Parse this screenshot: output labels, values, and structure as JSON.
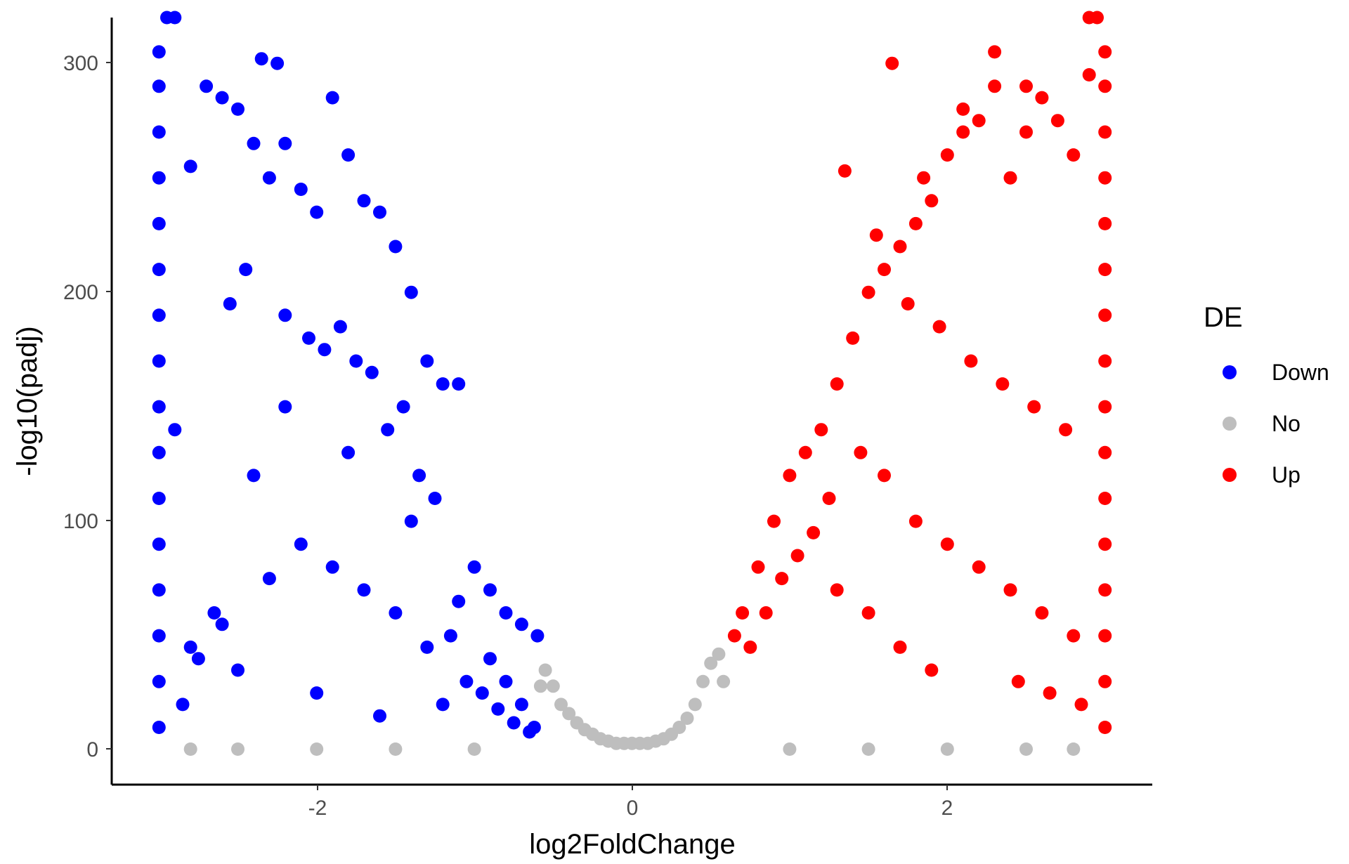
{
  "chart_data": {
    "type": "scatter",
    "title": "",
    "xlabel": "log2FoldChange",
    "ylabel": "-log10(padj)",
    "xlim": [
      -3.3,
      3.3
    ],
    "ylim": [
      -15,
      320
    ],
    "xticks": [
      -2,
      0,
      2
    ],
    "xtick_labels": [
      "-2",
      "0",
      "2"
    ],
    "yticks": [
      0,
      100,
      200,
      300
    ],
    "ytick_labels": [
      "0",
      "100",
      "200",
      "300"
    ],
    "grid": false,
    "legend": {
      "title": "DE",
      "position": "right",
      "entries": [
        {
          "label": "Down",
          "color": "#0000ff"
        },
        {
          "label": "No",
          "color": "#bebebe"
        },
        {
          "label": "Up",
          "color": "#ff0000"
        }
      ]
    },
    "series": [
      {
        "name": "No",
        "color": "#bebebe",
        "x": [
          -0.55,
          -0.5,
          -0.45,
          -0.4,
          -0.35,
          -0.3,
          -0.25,
          -0.2,
          -0.15,
          -0.1,
          -0.05,
          0.0,
          0.05,
          0.1,
          0.15,
          0.2,
          0.25,
          0.3,
          0.35,
          0.4,
          0.45,
          0.5,
          0.55,
          -2.8,
          -2.5,
          -2.0,
          -1.5,
          -1.0,
          1.0,
          1.5,
          2.0,
          2.5,
          2.8,
          -0.58,
          0.58
        ],
        "y": [
          35,
          28,
          20,
          16,
          12,
          9,
          7,
          5,
          4,
          3,
          3,
          3,
          3,
          3,
          4,
          5,
          7,
          10,
          14,
          20,
          30,
          38,
          42,
          0.5,
          0.5,
          0.5,
          0.5,
          0.5,
          0.5,
          0.5,
          0.5,
          0.5,
          0.5,
          28,
          30
        ]
      },
      {
        "name": "Down",
        "color": "#0000ff",
        "x": [
          -3.0,
          -3.0,
          -3.0,
          -3.0,
          -3.0,
          -3.0,
          -3.0,
          -3.0,
          -3.0,
          -3.0,
          -3.0,
          -3.0,
          -3.0,
          -3.0,
          -3.0,
          -3.0,
          -2.9,
          -2.8,
          -2.7,
          -2.6,
          -2.5,
          -2.4,
          -2.3,
          -2.2,
          -2.1,
          -2.0,
          -1.9,
          -1.8,
          -1.7,
          -1.6,
          -1.5,
          -1.4,
          -1.3,
          -1.2,
          -1.1,
          -1.0,
          -0.9,
          -0.8,
          -0.7,
          -0.6,
          -2.35,
          -2.25,
          -2.45,
          -2.55,
          -2.2,
          -2.05,
          -1.95,
          -1.85,
          -1.75,
          -1.65,
          -1.55,
          -1.45,
          -1.35,
          -1.25,
          -2.65,
          -2.75,
          -2.85,
          -2.5,
          -2.0,
          -1.6,
          -1.2,
          -1.05,
          -0.95,
          -0.85,
          -0.75,
          -0.65,
          -1.15,
          -1.3,
          -1.5,
          -1.7,
          -1.9,
          -2.1,
          -2.3,
          -2.6,
          -2.8,
          -2.4,
          -2.2,
          -1.8,
          -1.4,
          -1.1,
          -0.9,
          -0.8,
          -0.7,
          -0.62,
          -2.95,
          -2.9
        ],
        "y": [
          305,
          290,
          270,
          250,
          230,
          210,
          190,
          170,
          150,
          130,
          110,
          90,
          70,
          50,
          30,
          10,
          140,
          255,
          290,
          285,
          280,
          265,
          250,
          265,
          245,
          235,
          285,
          260,
          240,
          235,
          220,
          200,
          170,
          160,
          160,
          80,
          70,
          60,
          55,
          50,
          302,
          300,
          210,
          195,
          190,
          180,
          175,
          185,
          170,
          165,
          140,
          150,
          120,
          110,
          60,
          40,
          20,
          35,
          25,
          15,
          20,
          30,
          25,
          18,
          12,
          8,
          50,
          45,
          60,
          70,
          80,
          90,
          75,
          55,
          45,
          120,
          150,
          130,
          100,
          65,
          40,
          30,
          20,
          10,
          320,
          320
        ]
      },
      {
        "name": "Up",
        "color": "#ff0000",
        "x": [
          3.0,
          3.0,
          3.0,
          3.0,
          3.0,
          3.0,
          3.0,
          3.0,
          3.0,
          3.0,
          3.0,
          3.0,
          3.0,
          3.0,
          3.0,
          3.0,
          2.9,
          2.8,
          2.7,
          2.6,
          2.5,
          2.4,
          2.3,
          2.2,
          2.1,
          2.0,
          1.9,
          1.8,
          1.7,
          1.6,
          1.5,
          1.4,
          1.3,
          1.2,
          1.1,
          1.0,
          0.9,
          0.8,
          0.7,
          0.65,
          2.3,
          2.1,
          1.65,
          1.85,
          2.5,
          1.35,
          1.55,
          1.75,
          1.95,
          2.15,
          2.35,
          2.55,
          2.75,
          1.45,
          1.25,
          1.15,
          1.05,
          0.95,
          0.85,
          0.75,
          1.6,
          1.8,
          2.0,
          2.2,
          2.4,
          2.6,
          2.8,
          1.3,
          1.5,
          1.7,
          1.9,
          2.45,
          2.65,
          2.85,
          2.95,
          2.9
        ],
        "y": [
          305,
          290,
          270,
          250,
          230,
          210,
          190,
          170,
          150,
          130,
          110,
          90,
          70,
          50,
          30,
          10,
          295,
          260,
          275,
          285,
          270,
          250,
          305,
          275,
          270,
          260,
          240,
          230,
          220,
          210,
          200,
          180,
          160,
          140,
          130,
          120,
          100,
          80,
          60,
          50,
          290,
          280,
          300,
          250,
          290,
          253,
          225,
          195,
          185,
          170,
          160,
          150,
          140,
          130,
          110,
          95,
          85,
          75,
          60,
          45,
          120,
          100,
          90,
          80,
          70,
          60,
          50,
          70,
          60,
          45,
          35,
          30,
          25,
          20,
          320,
          320
        ]
      }
    ]
  }
}
